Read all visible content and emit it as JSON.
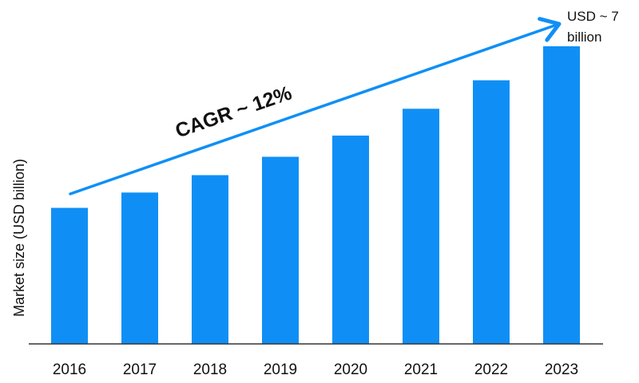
{
  "chart_data": {
    "type": "bar",
    "categories": [
      "2016",
      "2017",
      "2018",
      "2019",
      "2020",
      "2021",
      "2022",
      "2023"
    ],
    "values": [
      3.2,
      3.56,
      3.97,
      4.4,
      4.9,
      5.53,
      6.2,
      7.0
    ],
    "title": "",
    "xlabel": "",
    "ylabel": "Market size (USD billion)",
    "ylim": [
      0,
      7.0
    ],
    "grid": false,
    "legend": "none",
    "bar_color": "#0f8ff5",
    "arrow_color": "#0f8ff5",
    "annotations": {
      "trend": "CAGR ~ 12%",
      "end_label_line1": "USD ~ 7",
      "end_label_line2": "billion"
    }
  }
}
